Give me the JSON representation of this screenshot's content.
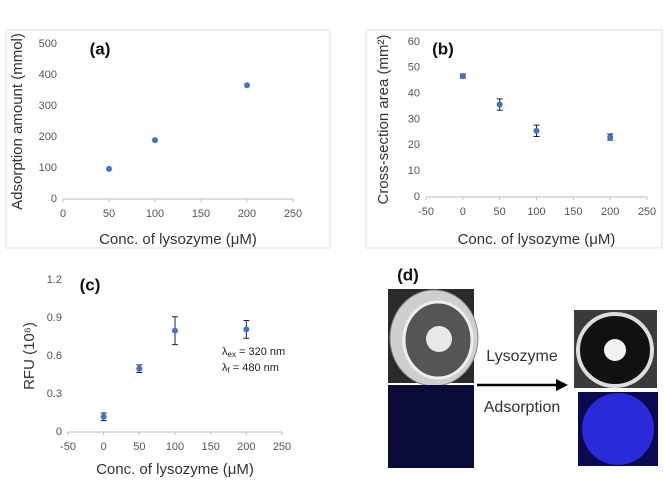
{
  "chart_data": [
    {
      "type": "scatter",
      "title": "(a)",
      "x_label": "Conc. of lysozyme (μM)",
      "y_label": "Adsorption amount (mmol)",
      "x": [
        50,
        100,
        200
      ],
      "values": [
        97,
        190,
        367
      ],
      "color": "#4472c4",
      "xlim": [
        0,
        250
      ],
      "xticks": [
        0,
        50,
        100,
        150,
        200,
        250
      ],
      "ylim": [
        0,
        500
      ],
      "yticks": [
        0,
        100,
        200,
        300,
        400,
        500
      ]
    },
    {
      "type": "scatter",
      "title": "(b)",
      "x_label": "Conc. of lysozyme (μM)",
      "y_label": "Cross-section area (mm²)",
      "x": [
        0,
        50,
        100,
        200
      ],
      "values": [
        46.8,
        35.8,
        25.6,
        23.2
      ],
      "errors": [
        0.8,
        2.2,
        2.2,
        1.2
      ],
      "color": "#4472c4",
      "xlim": [
        -50,
        250
      ],
      "xticks": [
        -50,
        0,
        50,
        100,
        150,
        200,
        250
      ],
      "ylim": [
        0,
        60
      ],
      "yticks": [
        0,
        10,
        20,
        30,
        40,
        50,
        60
      ]
    },
    {
      "type": "scatter",
      "title": "(c)",
      "x_label": "Conc. of lysozyme (μM)",
      "y_label": "RFU (10⁶)",
      "x": [
        0,
        50,
        100,
        200
      ],
      "values": [
        0.12,
        0.5,
        0.8,
        0.81
      ],
      "errors": [
        0.03,
        0.03,
        0.11,
        0.07
      ],
      "color": "#4472c4",
      "xlim": [
        -50,
        250
      ],
      "xticks": [
        -50,
        0,
        50,
        100,
        150,
        200,
        250
      ],
      "ylim": [
        0,
        1.2
      ],
      "yticks": [
        0,
        0.3,
        0.6,
        0.9,
        1.2
      ],
      "annotations": [
        {
          "symbol": "λ",
          "sub": "ex",
          "text": " = 320 nm"
        },
        {
          "symbol": "λ",
          "sub": "f",
          "text": " = 480 nm"
        }
      ]
    }
  ],
  "panel_d": {
    "label": "(d)",
    "arrow_top": "Lysozyme",
    "arrow_bottom": "Adsorption"
  }
}
